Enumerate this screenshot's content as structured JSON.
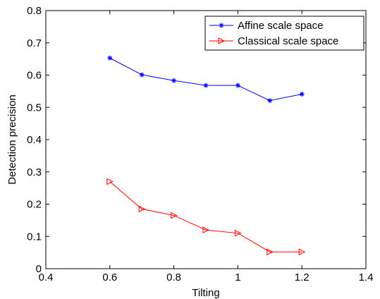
{
  "chart_data": {
    "type": "line",
    "xlabel": "Tilting",
    "ylabel": "Detection precision",
    "xlim": [
      0.4,
      1.4
    ],
    "ylim": [
      0,
      0.8
    ],
    "xticks": [
      0.4,
      0.6,
      0.8,
      1,
      1.2,
      1.4
    ],
    "yticks": [
      0,
      0.1,
      0.2,
      0.3,
      0.4,
      0.5,
      0.6,
      0.7,
      0.8
    ],
    "xtick_labels": [
      "0.4",
      "0.6",
      "0.8",
      "1",
      "1.2",
      "1.4"
    ],
    "ytick_labels": [
      "0",
      "0.1",
      "0.2",
      "0.3",
      "0.4",
      "0.5",
      "0.6",
      "0.7",
      "0.8"
    ],
    "grid": false,
    "legend_position": "top-right",
    "x": [
      0.6,
      0.7,
      0.8,
      0.9,
      1.0,
      1.1,
      1.2
    ],
    "series": [
      {
        "name": "Affine scale space",
        "color": "#0000ff",
        "marker": "asterisk",
        "values": [
          0.653,
          0.601,
          0.583,
          0.568,
          0.568,
          0.521,
          0.541
        ]
      },
      {
        "name": "Classical scale space",
        "color": "#ff0000",
        "marker": "triangle-right",
        "values": [
          0.27,
          0.185,
          0.165,
          0.12,
          0.11,
          0.052,
          0.052
        ]
      }
    ]
  }
}
